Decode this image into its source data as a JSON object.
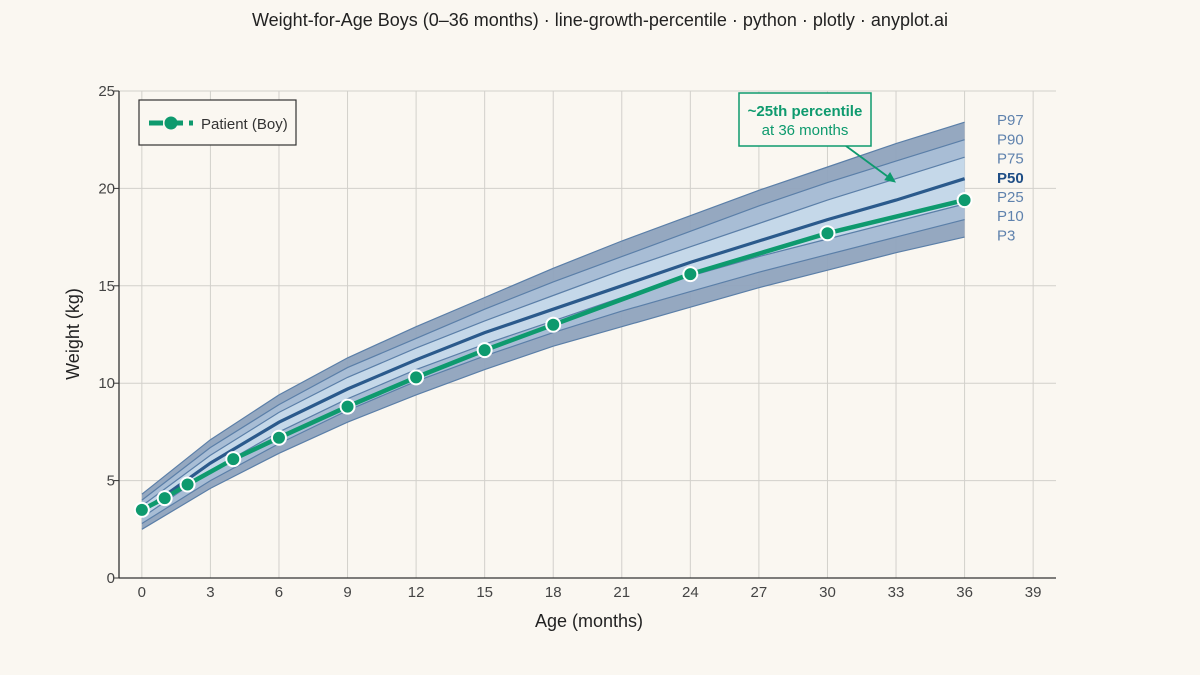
{
  "chart_data": {
    "type": "line",
    "title": "Weight-for-Age Boys (0–36 months) · line-growth-percentile · python · plotly · anyplot.ai",
    "xlabel": "Age (months)",
    "ylabel": "Weight (kg)",
    "xlim": [
      -1,
      40
    ],
    "ylim": [
      0,
      25
    ],
    "xticks": [
      0,
      3,
      6,
      9,
      12,
      15,
      18,
      21,
      24,
      27,
      30,
      33,
      36,
      39
    ],
    "yticks": [
      0,
      5,
      10,
      15,
      20,
      25
    ],
    "grid": true,
    "legend_position": "top-left",
    "percentile_x": [
      0,
      3,
      6,
      9,
      12,
      15,
      18,
      21,
      24,
      27,
      30,
      33,
      36
    ],
    "percentiles": [
      {
        "name": "P3",
        "values": [
          2.5,
          4.6,
          6.4,
          8.0,
          9.4,
          10.7,
          11.9,
          12.9,
          13.9,
          14.9,
          15.8,
          16.7,
          17.5
        ]
      },
      {
        "name": "P10",
        "values": [
          2.8,
          5.0,
          6.9,
          8.6,
          10.1,
          11.4,
          12.6,
          13.7,
          14.7,
          15.7,
          16.6,
          17.5,
          18.4
        ]
      },
      {
        "name": "P25",
        "values": [
          3.1,
          5.5,
          7.5,
          9.2,
          10.7,
          12.0,
          13.2,
          14.4,
          15.5,
          16.5,
          17.4,
          18.3,
          19.2
        ]
      },
      {
        "name": "P50",
        "values": [
          3.4,
          5.9,
          8.0,
          9.7,
          11.2,
          12.6,
          13.8,
          15.0,
          16.2,
          17.3,
          18.4,
          19.4,
          20.5
        ]
      },
      {
        "name": "P75",
        "values": [
          3.7,
          6.3,
          8.5,
          10.3,
          11.8,
          13.2,
          14.5,
          15.8,
          17.0,
          18.2,
          19.4,
          20.5,
          21.6
        ]
      },
      {
        "name": "P90",
        "values": [
          4.0,
          6.7,
          8.9,
          10.8,
          12.3,
          13.8,
          15.2,
          16.5,
          17.8,
          19.1,
          20.3,
          21.4,
          22.5
        ]
      },
      {
        "name": "P97",
        "values": [
          4.3,
          7.1,
          9.4,
          11.3,
          12.9,
          14.4,
          15.9,
          17.3,
          18.6,
          19.9,
          21.1,
          22.3,
          23.4
        ]
      }
    ],
    "series": [
      {
        "name": "Patient (Boy)",
        "x": [
          0,
          1,
          2,
          4,
          6,
          9,
          12,
          15,
          18,
          24,
          30,
          36
        ],
        "values": [
          3.5,
          4.1,
          4.8,
          6.1,
          7.2,
          8.8,
          10.3,
          11.7,
          13.0,
          15.6,
          17.7,
          19.4
        ]
      }
    ],
    "annotation": {
      "line1": "~25th percentile",
      "line2": "at 36 months",
      "arrow_to_x": 33.0,
      "arrow_to_y": 20.3
    },
    "colors": {
      "outer_band": "#8fa3bd",
      "mid_band": "#a9bed6",
      "inner_band": "#c6d9ea",
      "percentile_line": "#5b7fa8",
      "median_line": "#2b5a8c",
      "patient": "#0e9a6e",
      "label": "#5f82ad",
      "median_label": "#1f4e86"
    }
  }
}
